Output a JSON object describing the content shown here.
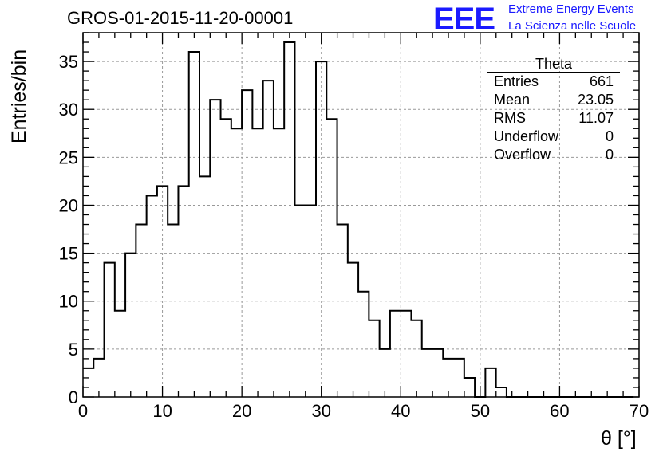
{
  "header": {
    "title": "GROS-01-2015-11-20-00001"
  },
  "logo": {
    "mark": "EEE",
    "line1": "Extreme Energy Events",
    "line2": "La Scienza nelle Scuole"
  },
  "stats": {
    "name": "Theta",
    "rows": [
      {
        "label": "Entries",
        "value": "661"
      },
      {
        "label": "Mean",
        "value": "23.05"
      },
      {
        "label": "RMS",
        "value": "11.07"
      },
      {
        "label": "Underflow",
        "value": "0"
      },
      {
        "label": "Overflow",
        "value": "0"
      }
    ]
  },
  "chart_data": {
    "type": "bar",
    "style": "step-histogram",
    "xlabel": "θ [°]",
    "ylabel": "Entries/bin",
    "xlim": [
      0,
      70
    ],
    "ylim": [
      0,
      38
    ],
    "grid": true,
    "xticks": [
      0,
      10,
      20,
      30,
      40,
      50,
      60,
      70
    ],
    "yticks": [
      0,
      5,
      10,
      15,
      20,
      25,
      30,
      35
    ],
    "bin_width": 1.333,
    "values": [
      3,
      4,
      14,
      9,
      15,
      18,
      21,
      22,
      18,
      22,
      36,
      23,
      31,
      29,
      28,
      32,
      28,
      33,
      28,
      37,
      20,
      20,
      35,
      29,
      18,
      14,
      11,
      8,
      5,
      9,
      9,
      8,
      5,
      5,
      4,
      4,
      2,
      0,
      3,
      1,
      0,
      0,
      0,
      0,
      0,
      0,
      0,
      0,
      0,
      0,
      0,
      0
    ]
  }
}
